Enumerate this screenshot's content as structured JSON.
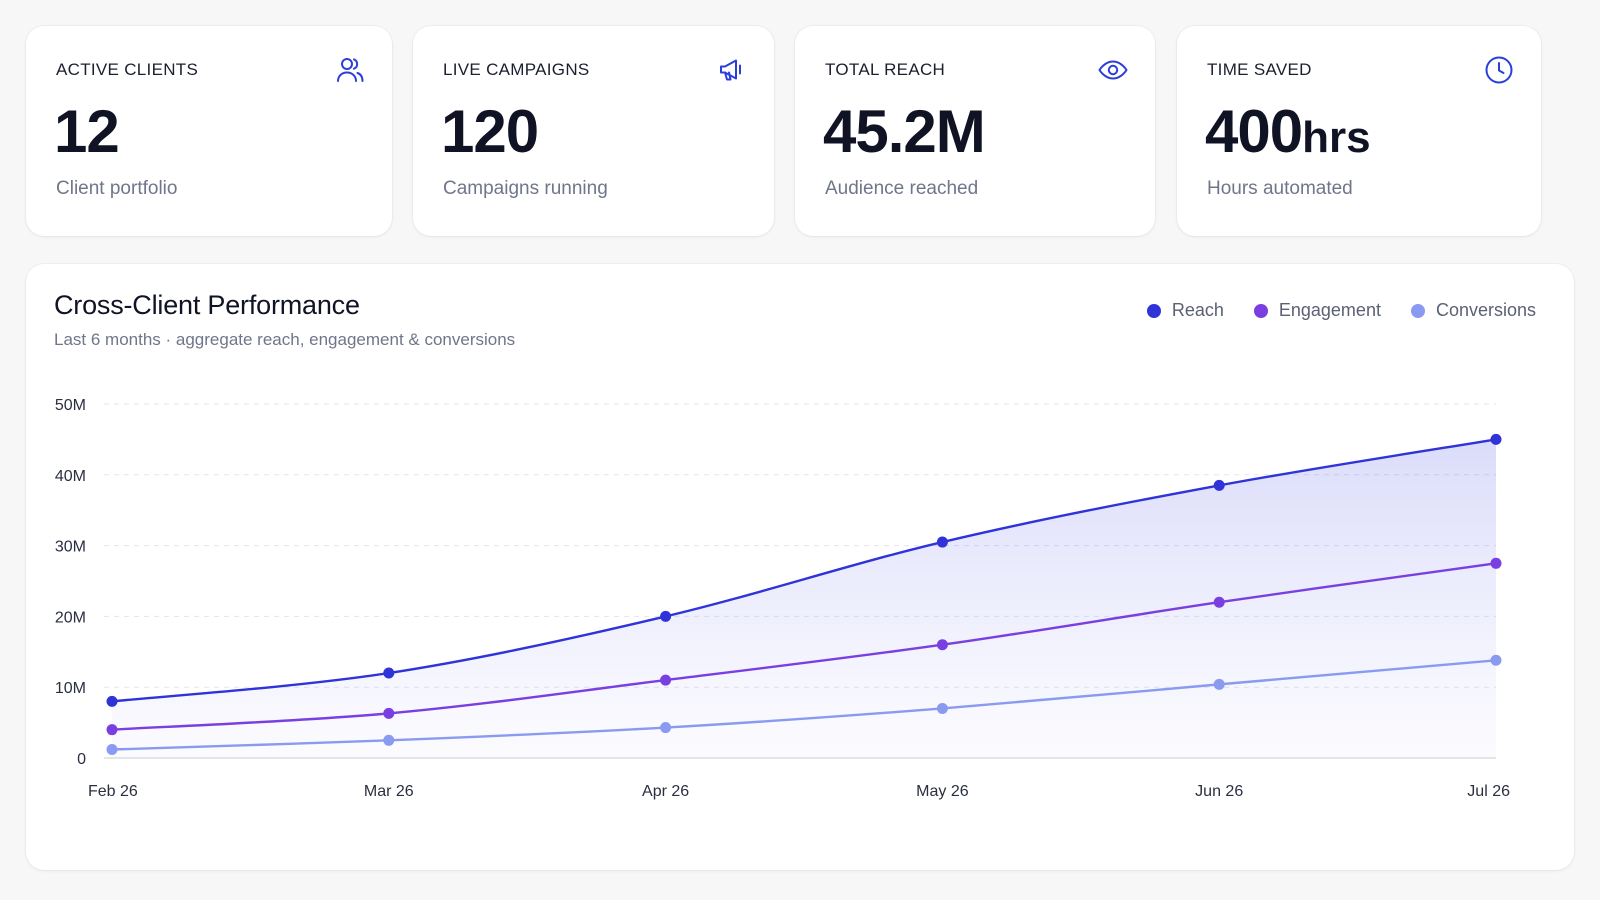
{
  "kpis": [
    {
      "label": "ACTIVE CLIENTS",
      "value": "12",
      "unit": "",
      "sublabel": "Client portfolio",
      "icon": "users-icon"
    },
    {
      "label": "LIVE CAMPAIGNS",
      "value": "120",
      "unit": "",
      "sublabel": "Campaigns running",
      "icon": "megaphone-icon"
    },
    {
      "label": "TOTAL REACH",
      "value": "45.2M",
      "unit": "",
      "sublabel": "Audience reached",
      "icon": "eye-icon"
    },
    {
      "label": "TIME SAVED",
      "value": "400",
      "unit": "hrs",
      "sublabel": "Hours automated",
      "icon": "clock-icon"
    }
  ],
  "colors": {
    "accent": "#2b3fd8",
    "reach": "#2f33d8",
    "engagement": "#7a3fe0",
    "conversions": "#8a9af0"
  },
  "chart_data": {
    "type": "area",
    "title": "Cross-Client Performance",
    "subtitle": "Last 6 months · aggregate reach, engagement & conversions",
    "categories": [
      "Feb 26",
      "Mar 26",
      "Apr 26",
      "May 26",
      "Jun 26",
      "Jul 26"
    ],
    "series": [
      {
        "name": "Reach",
        "values": [
          8,
          12,
          20,
          30.5,
          38.5,
          45
        ],
        "filled": true
      },
      {
        "name": "Engagement",
        "values": [
          4,
          6.3,
          11,
          16,
          22,
          27.5
        ],
        "filled": false
      },
      {
        "name": "Conversions",
        "values": [
          1.2,
          2.5,
          4.3,
          7,
          10.4,
          13.8
        ],
        "filled": false
      }
    ],
    "y_ticks": [
      "0",
      "10M",
      "20M",
      "30M",
      "40M",
      "50M"
    ],
    "ylim": [
      0,
      50
    ],
    "grid": true,
    "legend": "top-right"
  }
}
